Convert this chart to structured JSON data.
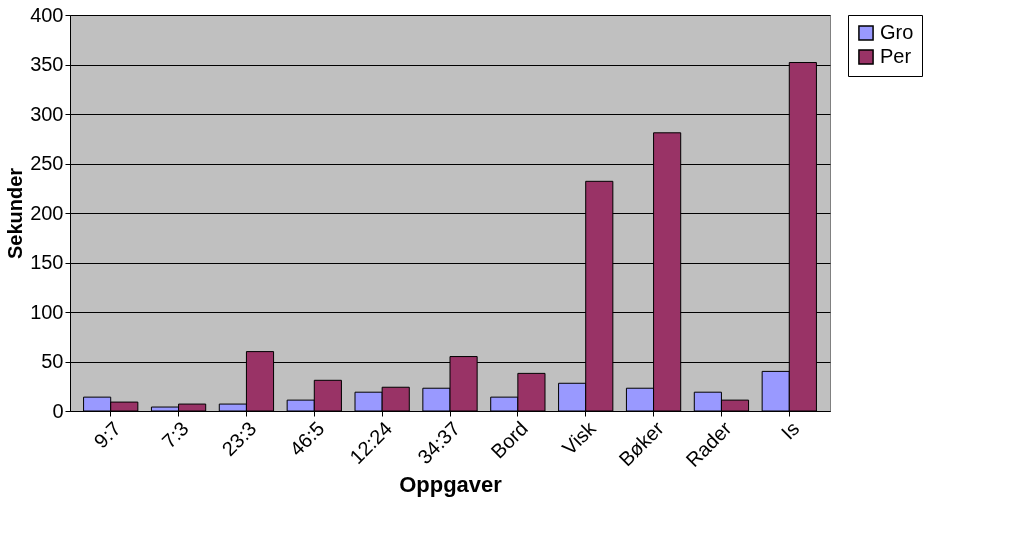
{
  "chart_data": {
    "type": "bar",
    "xlabel": "Oppgaver",
    "ylabel": "Sekunder",
    "categories": [
      "9:7",
      "7:3",
      "23:3",
      "46:5",
      "12:24",
      "34:37",
      "Bord",
      "Visk",
      "Bøker",
      "Rader",
      "Is"
    ],
    "series": [
      {
        "name": "Gro",
        "color": "#9999ff",
        "values": [
          14,
          4,
          7,
          11,
          19,
          23,
          14,
          28,
          23,
          19,
          40
        ]
      },
      {
        "name": "Per",
        "color": "#993366",
        "values": [
          9,
          7,
          60,
          31,
          24,
          55,
          38,
          232,
          281,
          11,
          352
        ]
      }
    ],
    "ylim": [
      0,
      400
    ],
    "yticks": [
      0,
      50,
      100,
      150,
      200,
      250,
      300,
      350,
      400
    ],
    "grid": "y",
    "legend": "right"
  }
}
